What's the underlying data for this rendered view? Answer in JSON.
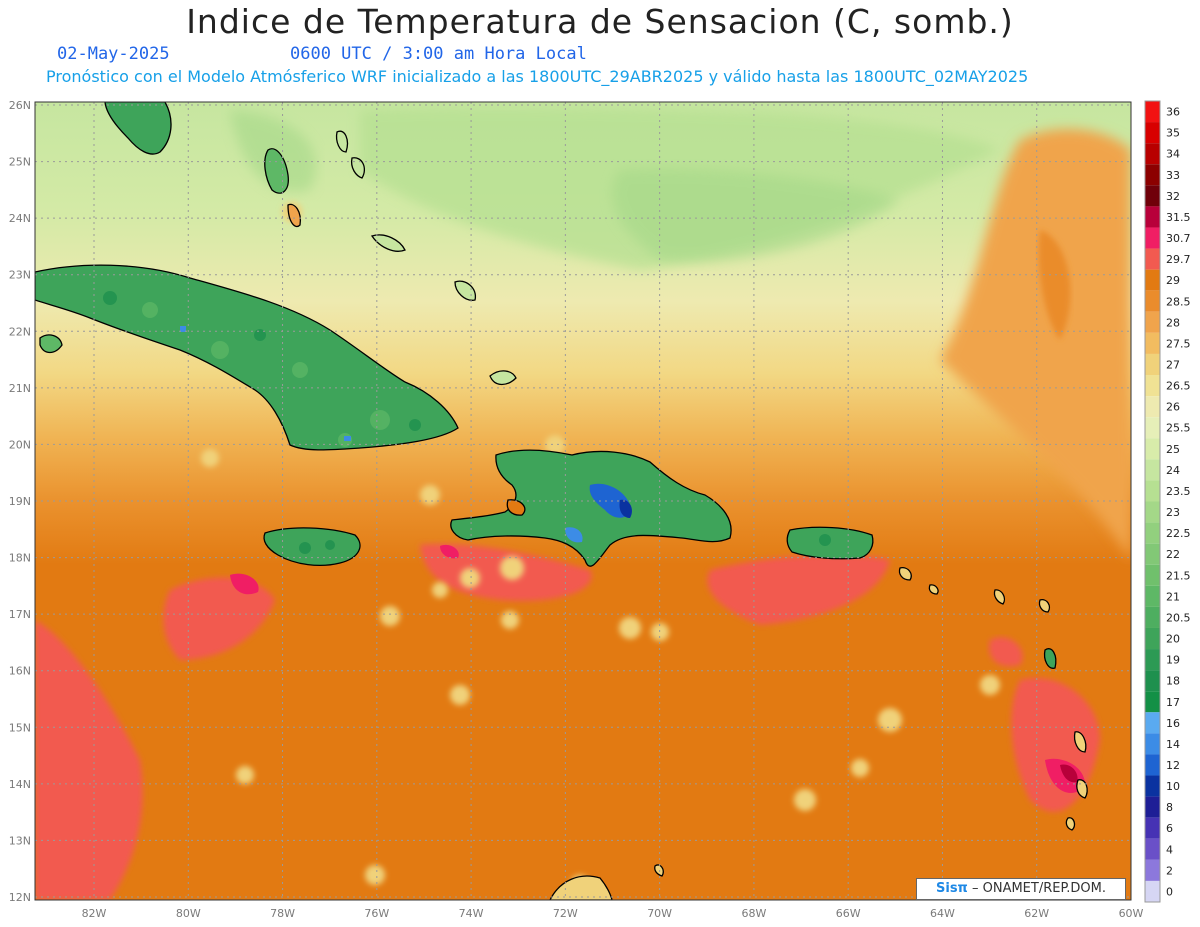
{
  "header": {
    "title": "Indice de Temperatura de Sensacion (C, somb.)",
    "date": "02-May-2025",
    "time": "0600 UTC / 3:00 am Hora Local",
    "forecast": "Pronóstico con el Modelo Atmósferico WRF inicializado a las 1800UTC_29ABR2025 y válido hasta las  1800UTC_02MAY2025"
  },
  "axes": {
    "lat_labels": [
      "26N",
      "25N",
      "24N",
      "23N",
      "22N",
      "21N",
      "20N",
      "19N",
      "18N",
      "17N",
      "16N",
      "15N",
      "14N",
      "13N",
      "12N"
    ],
    "lon_labels": [
      "82W",
      "80W",
      "78W",
      "76W",
      "74W",
      "72W",
      "70W",
      "68W",
      "66W",
      "64W",
      "62W",
      "60W"
    ],
    "grid": true
  },
  "legend": {
    "labels": [
      "36",
      "35",
      "34",
      "33",
      "32",
      "31.5",
      "30.7",
      "29.7",
      "29",
      "28.5",
      "28",
      "27.5",
      "27",
      "26.5",
      "26",
      "25.5",
      "25",
      "24",
      "23.5",
      "23",
      "22.5",
      "22",
      "21.5",
      "21",
      "20.5",
      "20",
      "19",
      "18",
      "17",
      "16",
      "14",
      "12",
      "10",
      "8",
      "6",
      "4",
      "2",
      "0"
    ],
    "colors": [
      "#f21212",
      "#d80000",
      "#b80000",
      "#8c0000",
      "#70000a",
      "#b8003a",
      "#f01e64",
      "#f25a50",
      "#e27a12",
      "#ea8c2c",
      "#f0a44c",
      "#f2bc60",
      "#f0d27a",
      "#f0e294",
      "#eeeab0",
      "#e6efb8",
      "#d8ecaa",
      "#c6e6a0",
      "#b6e092",
      "#a4d888",
      "#92d07e",
      "#82c876",
      "#70c06c",
      "#5eb866",
      "#4eae60",
      "#3ea45a",
      "#2c9a54",
      "#1e904e",
      "#139046",
      "#5aaaf0",
      "#3c8ce6",
      "#1e64d2",
      "#0a32a0",
      "#1e1e96",
      "#4632b4",
      "#6a50c8",
      "#8c78dc",
      "#d6d6f4"
    ]
  },
  "credit": {
    "brand": "Sisπ",
    "org": " – ONAMET/REP.DOM."
  },
  "colors": {
    "sea_warm": "#e27a12",
    "sea_hot": "#f25a50",
    "land_cool": "#3ea45a",
    "north_cool": "#c6e6a0",
    "coastline": "#000000"
  }
}
